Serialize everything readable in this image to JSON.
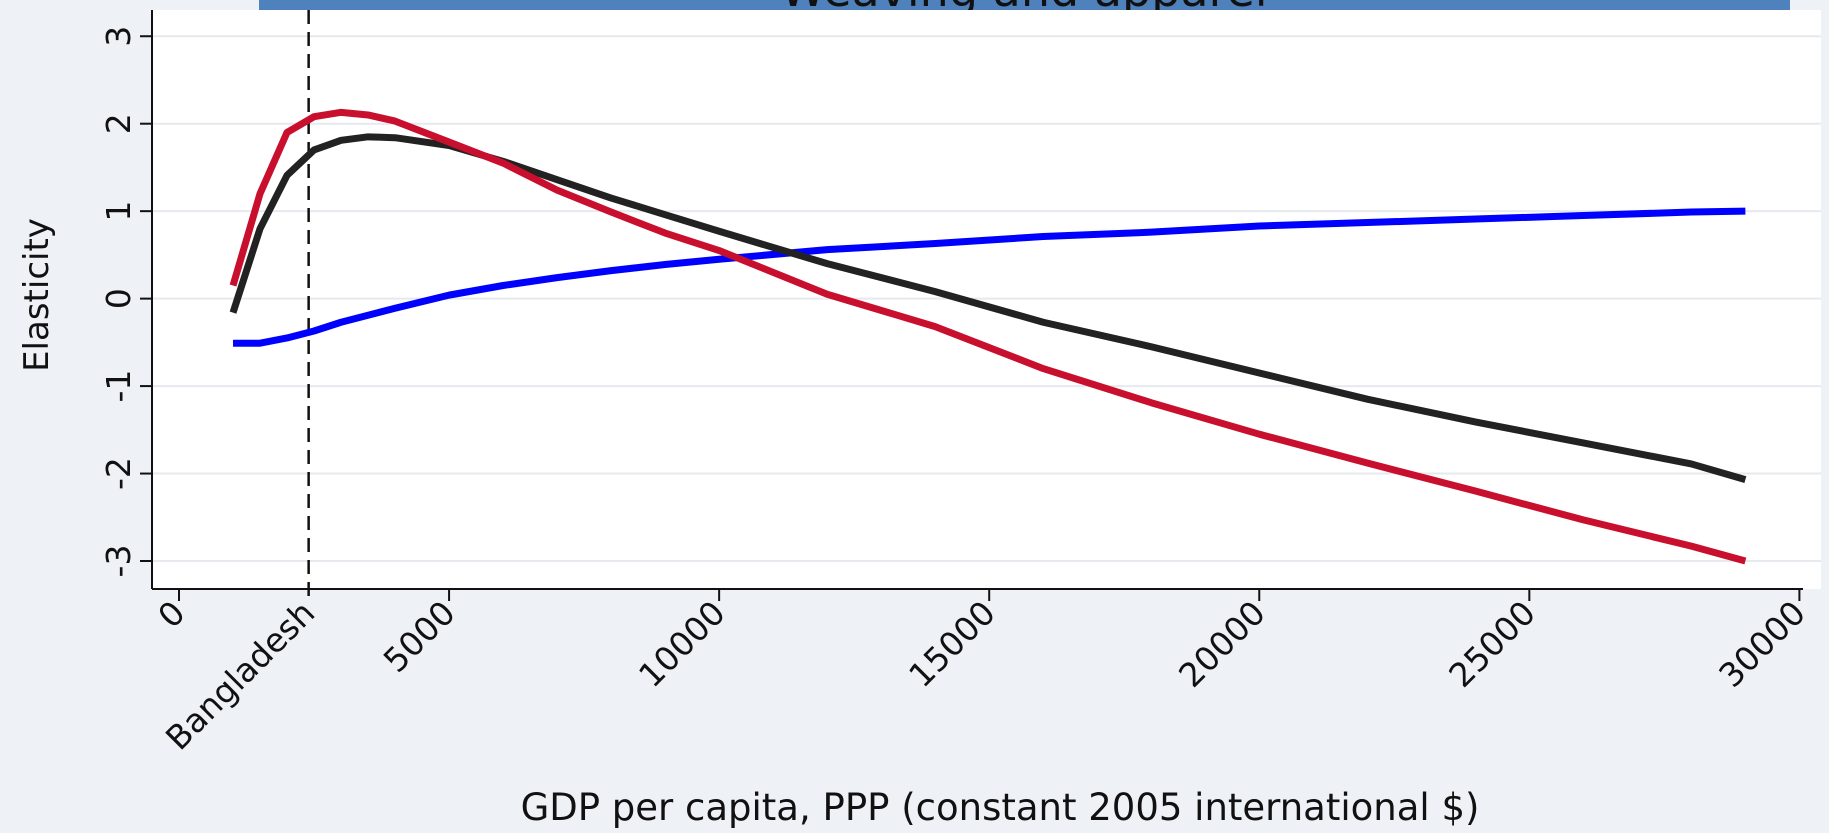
{
  "chart_data": {
    "type": "line",
    "title": "Weaving and apparel",
    "xlabel": "GDP per capita, PPP (constant 2005 international $)",
    "ylabel": "Elasticity",
    "x": [
      1000,
      1500,
      2000,
      2500,
      3000,
      3500,
      4000,
      5000,
      6000,
      7000,
      8000,
      9000,
      10000,
      12000,
      14000,
      16000,
      18000,
      20000,
      22000,
      24000,
      26000,
      28000,
      29000
    ],
    "series": [
      {
        "color": "#0000ff",
        "values": [
          -0.51,
          -0.51,
          -0.45,
          -0.37,
          -0.27,
          -0.19,
          -0.11,
          0.04,
          0.15,
          0.24,
          0.32,
          0.39,
          0.45,
          0.56,
          0.63,
          0.71,
          0.76,
          0.83,
          0.87,
          0.91,
          0.95,
          0.99,
          1.0
        ]
      },
      {
        "color": "#222222",
        "values": [
          -0.16,
          0.8,
          1.41,
          1.7,
          1.81,
          1.85,
          1.84,
          1.75,
          1.57,
          1.36,
          1.15,
          0.96,
          0.77,
          0.4,
          0.08,
          -0.27,
          -0.55,
          -0.85,
          -1.15,
          -1.41,
          -1.65,
          -1.89,
          -2.07
        ]
      },
      {
        "color": "#c8102e",
        "values": [
          0.15,
          1.2,
          1.9,
          2.08,
          2.13,
          2.1,
          2.03,
          1.79,
          1.55,
          1.24,
          0.99,
          0.75,
          0.55,
          0.05,
          -0.32,
          -0.8,
          -1.19,
          -1.55,
          -1.88,
          -2.2,
          -2.53,
          -2.83,
          -3.0
        ]
      }
    ],
    "xlim": [
      -500,
      30400
    ],
    "ylim": [
      -3.32,
      3.3
    ],
    "xticks": [
      0,
      5000,
      10000,
      15000,
      20000,
      25000,
      30000
    ],
    "yticks": [
      -3,
      -2,
      -1,
      0,
      1,
      2,
      3
    ],
    "vline": {
      "value": 2400,
      "label": "Bangladesh"
    },
    "grid": true
  }
}
